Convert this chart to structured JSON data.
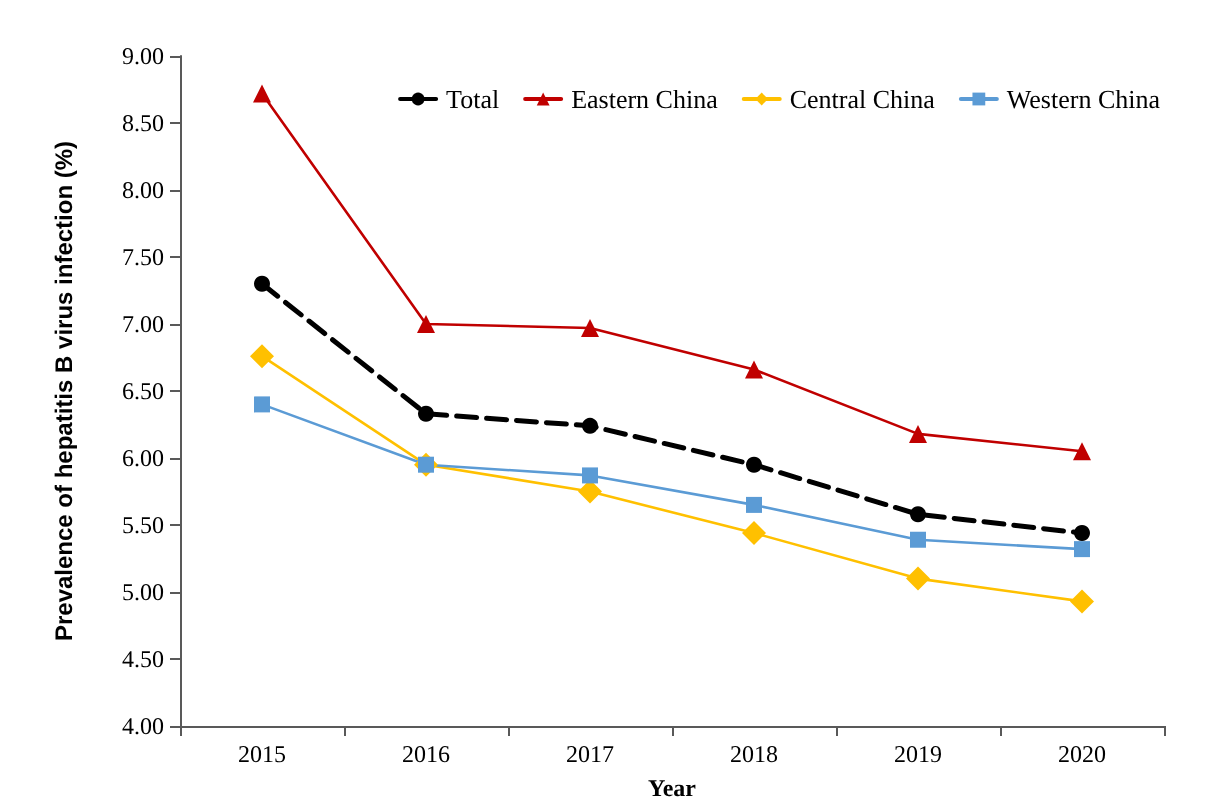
{
  "chart_data": {
    "type": "line",
    "xlabel": "Year",
    "ylabel": "Prevalence of hepatitis B virus infection (%)",
    "categories": [
      "2015",
      "2016",
      "2017",
      "2018",
      "2019",
      "2020"
    ],
    "series": [
      {
        "name": "Total",
        "color": "#000000",
        "marker": "circle",
        "line_style": "dashed",
        "values": [
          7.3,
          6.33,
          6.24,
          5.95,
          5.58,
          5.44
        ]
      },
      {
        "name": "Eastern China",
        "color": "#c00000",
        "marker": "triangle",
        "line_style": "solid",
        "values": [
          8.72,
          7.0,
          6.97,
          6.66,
          6.18,
          6.05
        ]
      },
      {
        "name": "Central China",
        "color": "#ffc000",
        "marker": "diamond",
        "line_style": "solid",
        "values": [
          6.76,
          5.95,
          5.75,
          5.44,
          5.1,
          4.93
        ]
      },
      {
        "name": "Western China",
        "color": "#5b9bd5",
        "marker": "square",
        "line_style": "solid",
        "values": [
          6.4,
          5.95,
          5.87,
          5.65,
          5.39,
          5.32
        ]
      }
    ],
    "ylim": [
      4,
      9
    ],
    "yticks": [
      {
        "value": 4,
        "label": "4.00"
      },
      {
        "value": 4.5,
        "label": "4.50"
      },
      {
        "value": 5,
        "label": "5.00"
      },
      {
        "value": 5.5,
        "label": "5.50"
      },
      {
        "value": 6,
        "label": "6.00"
      },
      {
        "value": 6.5,
        "label": "6.50"
      },
      {
        "value": 7,
        "label": "7.00"
      },
      {
        "value": 7.5,
        "label": "7.50"
      },
      {
        "value": 8,
        "label": "8.00"
      },
      {
        "value": 8.5,
        "label": "8.50"
      },
      {
        "value": 9,
        "label": "9.00"
      }
    ],
    "grid": false,
    "legend": "top right"
  }
}
